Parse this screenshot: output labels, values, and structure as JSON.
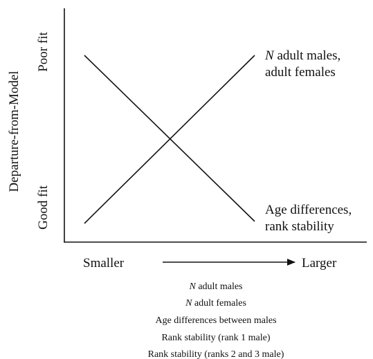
{
  "y_axis": {
    "label": "Departure-from-Model",
    "top": "Poor fit",
    "bottom": "Good fit"
  },
  "x_axis": {
    "left": "Smaller",
    "right": "Larger"
  },
  "rising_line": {
    "label": [
      {
        "italic": "N",
        "text": "adult males,"
      },
      {
        "text": "adult females"
      }
    ]
  },
  "falling_line": {
    "label": [
      {
        "text": "Age differences,"
      },
      {
        "text": "rank stability"
      }
    ]
  },
  "caption": [
    {
      "italic": "N",
      "text": "adult males"
    },
    {
      "italic": "N",
      "text": "adult females"
    },
    {
      "text": "Age differences between males"
    },
    {
      "text": "Rank stability (rank 1 male)"
    },
    {
      "text": "Rank stability (ranks 2 and 3 male)"
    }
  ]
}
